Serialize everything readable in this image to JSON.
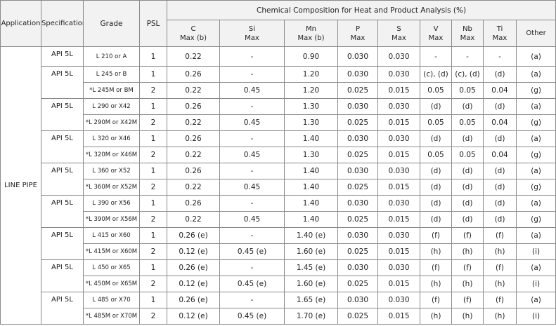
{
  "table": {
    "header": {
      "application": "Application",
      "specification": "Specification",
      "grade": "Grade",
      "psl": "PSL",
      "group": "Chemical Composition for Heat and Product Analysis (%)",
      "elements": [
        "C\nMax (b)",
        "Si\nMax",
        "Mn\nMax (b)",
        "P\nMax",
        "S\nMax",
        "V\nMax",
        "Nb\nMax",
        "Ti\nMax",
        "Other"
      ]
    },
    "application": "LINE PIPE",
    "groups": [
      {
        "specification": "API 5L",
        "rows": [
          [
            "L 210 or A",
            "1",
            "0.22",
            "-",
            "0.90",
            "0.030",
            "0.030",
            "-",
            "-",
            "-",
            "(a)"
          ]
        ]
      },
      {
        "specification": "API 5L",
        "rows": [
          [
            "L 245 or B",
            "1",
            "0.26",
            "-",
            "1.20",
            "0.030",
            "0.030",
            "(c), (d)",
            "(c), (d)",
            "(d)",
            "(a)"
          ],
          [
            "*L 245M or BM",
            "2",
            "0.22",
            "0.45",
            "1.20",
            "0.025",
            "0.015",
            "0.05",
            "0.05",
            "0.04",
            "(g)"
          ]
        ]
      },
      {
        "specification": "API 5L",
        "rows": [
          [
            "L 290 or X42",
            "1",
            "0.26",
            "-",
            "1.30",
            "0.030",
            "0.030",
            "(d)",
            "(d)",
            "(d)",
            "(a)"
          ],
          [
            "*L 290M or X42M",
            "2",
            "0.22",
            "0.45",
            "1.30",
            "0.025",
            "0.015",
            "0.05",
            "0.05",
            "0.04",
            "(g)"
          ]
        ]
      },
      {
        "specification": "API 5L",
        "rows": [
          [
            "L 320 or X46",
            "1",
            "0.26",
            "-",
            "1.40",
            "0.030",
            "0.030",
            "(d)",
            "(d)",
            "(d)",
            "(a)"
          ],
          [
            "*L 320M or X46M",
            "2",
            "0.22",
            "0.45",
            "1.30",
            "0.025",
            "0.015",
            "0.05",
            "0.05",
            "0.04",
            "(g)"
          ]
        ]
      },
      {
        "specification": "API 5L",
        "rows": [
          [
            "L 360 or X52",
            "1",
            "0.26",
            "-",
            "1.40",
            "0.030",
            "0.030",
            "(d)",
            "(d)",
            "(d)",
            "(a)"
          ],
          [
            "*L 360M or X52M",
            "2",
            "0.22",
            "0.45",
            "1.40",
            "0.025",
            "0.015",
            "(d)",
            "(d)",
            "(d)",
            "(g)"
          ]
        ]
      },
      {
        "specification": "API 5L",
        "rows": [
          [
            "L 390 or X56",
            "1",
            "0.26",
            "-",
            "1.40",
            "0.030",
            "0.030",
            "(d)",
            "(d)",
            "(d)",
            "(a)"
          ],
          [
            "*L 390M or X56M",
            "2",
            "0.22",
            "0.45",
            "1.40",
            "0.025",
            "0.015",
            "(d)",
            "(d)",
            "(d)",
            "(g)"
          ]
        ]
      },
      {
        "specification": "API 5L",
        "rows": [
          [
            "L 415 or X60",
            "1",
            "0.26 (e)",
            "-",
            "1.40 (e)",
            "0.030",
            "0.030",
            "(f)",
            "(f)",
            "(f)",
            "(a)"
          ],
          [
            "*L 415M or X60M",
            "2",
            "0.12 (e)",
            "0.45 (e)",
            "1.60 (e)",
            "0.025",
            "0.015",
            "(h)",
            "(h)",
            "(h)",
            "(i)"
          ]
        ]
      },
      {
        "specification": "API 5L",
        "rows": [
          [
            "L 450 or X65",
            "1",
            "0.26 (e)",
            "-",
            "1.45 (e)",
            "0.030",
            "0.030",
            "(f)",
            "(f)",
            "(f)",
            "(a)"
          ],
          [
            "*L 450M or X65M",
            "2",
            "0.12 (e)",
            "0.45 (e)",
            "1.60 (e)",
            "0.025",
            "0.015",
            "(h)",
            "(h)",
            "(h)",
            "(i)"
          ]
        ]
      },
      {
        "specification": "API 5L",
        "rows": [
          [
            "L 485 or X70",
            "1",
            "0.26 (e)",
            "-",
            "1.65 (e)",
            "0.030",
            "0.030",
            "(f)",
            "(f)",
            "(f)",
            "(a)"
          ],
          [
            "*L 485M or X70M",
            "2",
            "0.12 (e)",
            "0.45 (e)",
            "1.70 (e)",
            "0.025",
            "0.015",
            "(h)",
            "(h)",
            "(h)",
            "(i)"
          ]
        ]
      }
    ]
  }
}
